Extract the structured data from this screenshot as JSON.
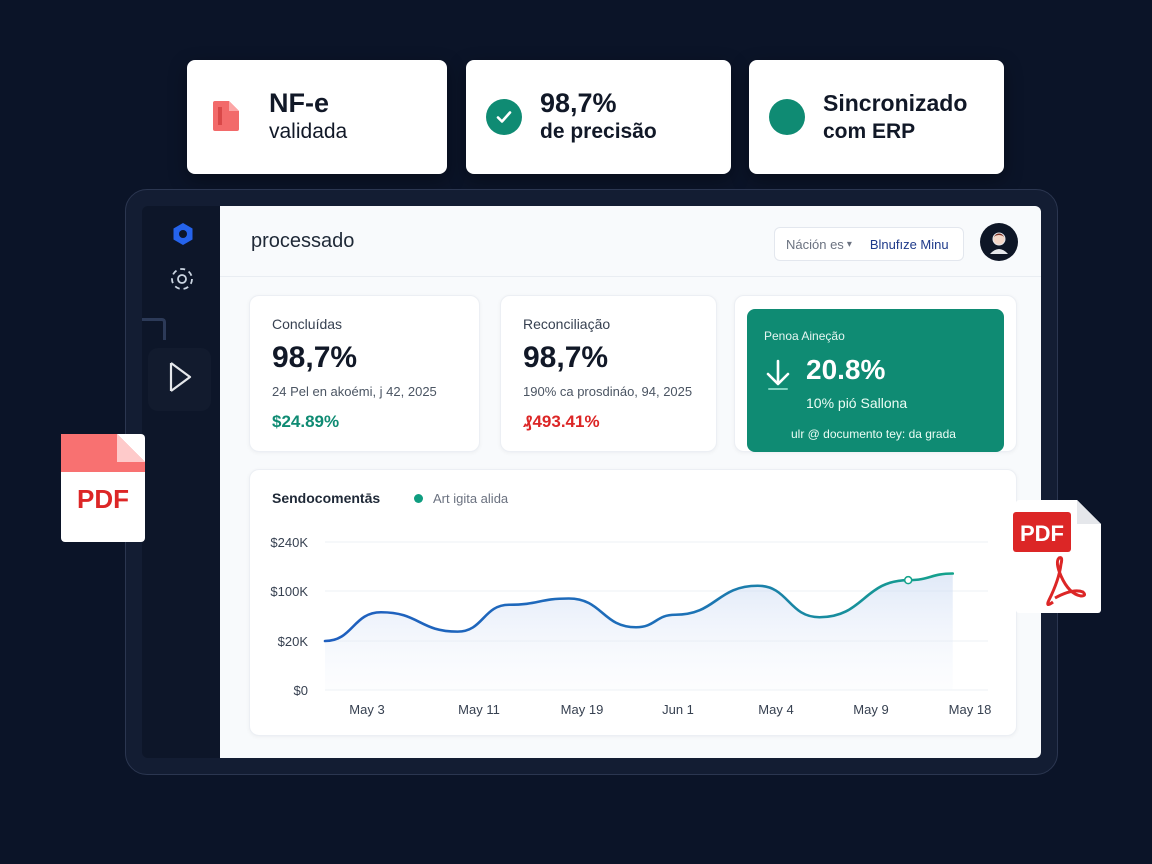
{
  "badges": {
    "nfe": {
      "title": "NF-e",
      "subtitle": "validada",
      "icon": "document-icon"
    },
    "precision": {
      "title": "98,7%",
      "subtitle": "de precisão",
      "icon": "check-circle-icon"
    },
    "erp": {
      "title": "Sincronizado",
      "subtitle": "com ERP",
      "icon": "status-dot-icon"
    }
  },
  "colors": {
    "accent": "#0f8b73",
    "background": "#0b1428",
    "positive": "#0f8b73",
    "negative": "#dc2626",
    "line_start": "#1f5fbf",
    "line_end": "#14a38b"
  },
  "sidebar": {
    "icons": [
      "gear-icon",
      "scan-face-icon",
      "play-icon"
    ]
  },
  "header": {
    "title": "processado",
    "filter_select": "Náción es",
    "filter_action": "Blnufıze Minu"
  },
  "cards": [
    {
      "label": "Concluídas",
      "value": "98,7%",
      "sub": "24 Pel en akoémi, j 42, 2025",
      "change": "$24.89%",
      "trend": "positive"
    },
    {
      "label": "Reconciliação",
      "value": "98,7%",
      "sub": "190% ca prosdináo, 94, 2025",
      "change": "₰493.41%",
      "trend": "negative"
    },
    {
      "label": "Penoa Aineção",
      "value": "20.8%",
      "sub": "10% pió Sallona",
      "footer": "ulr  @ documento  tey: da grada",
      "icon": "arrow-down-icon"
    }
  ],
  "chart": {
    "title": "Sendocomentās",
    "legend": "Art igita alida"
  },
  "chart_data": {
    "type": "area",
    "title": "Sendocomentās",
    "xlabel": "",
    "ylabel": "",
    "x_ticks": [
      "May 3",
      "May 11",
      "May 19",
      "Jun 1",
      "May 4",
      "May 9",
      "May 18"
    ],
    "y_ticks": [
      "$0",
      "$20K",
      "$100K",
      "$240K"
    ],
    "y_tick_values": [
      0,
      20,
      100,
      240
    ],
    "series": [
      {
        "name": "Art igita alida",
        "points": [
          [
            0,
            20
          ],
          [
            0.5,
            66
          ],
          [
            1.2,
            35
          ],
          [
            1.7,
            78
          ],
          [
            2.3,
            88
          ],
          [
            3.0,
            42
          ],
          [
            3.4,
            62
          ],
          [
            4.25,
            115
          ],
          [
            4.9,
            58
          ],
          [
            5.8,
            131
          ],
          [
            6.25,
            150
          ]
        ]
      }
    ],
    "grid": true,
    "legend_position": "top-left"
  },
  "pdf_icons": {
    "left_label": "PDF",
    "right_label": "PDF"
  }
}
